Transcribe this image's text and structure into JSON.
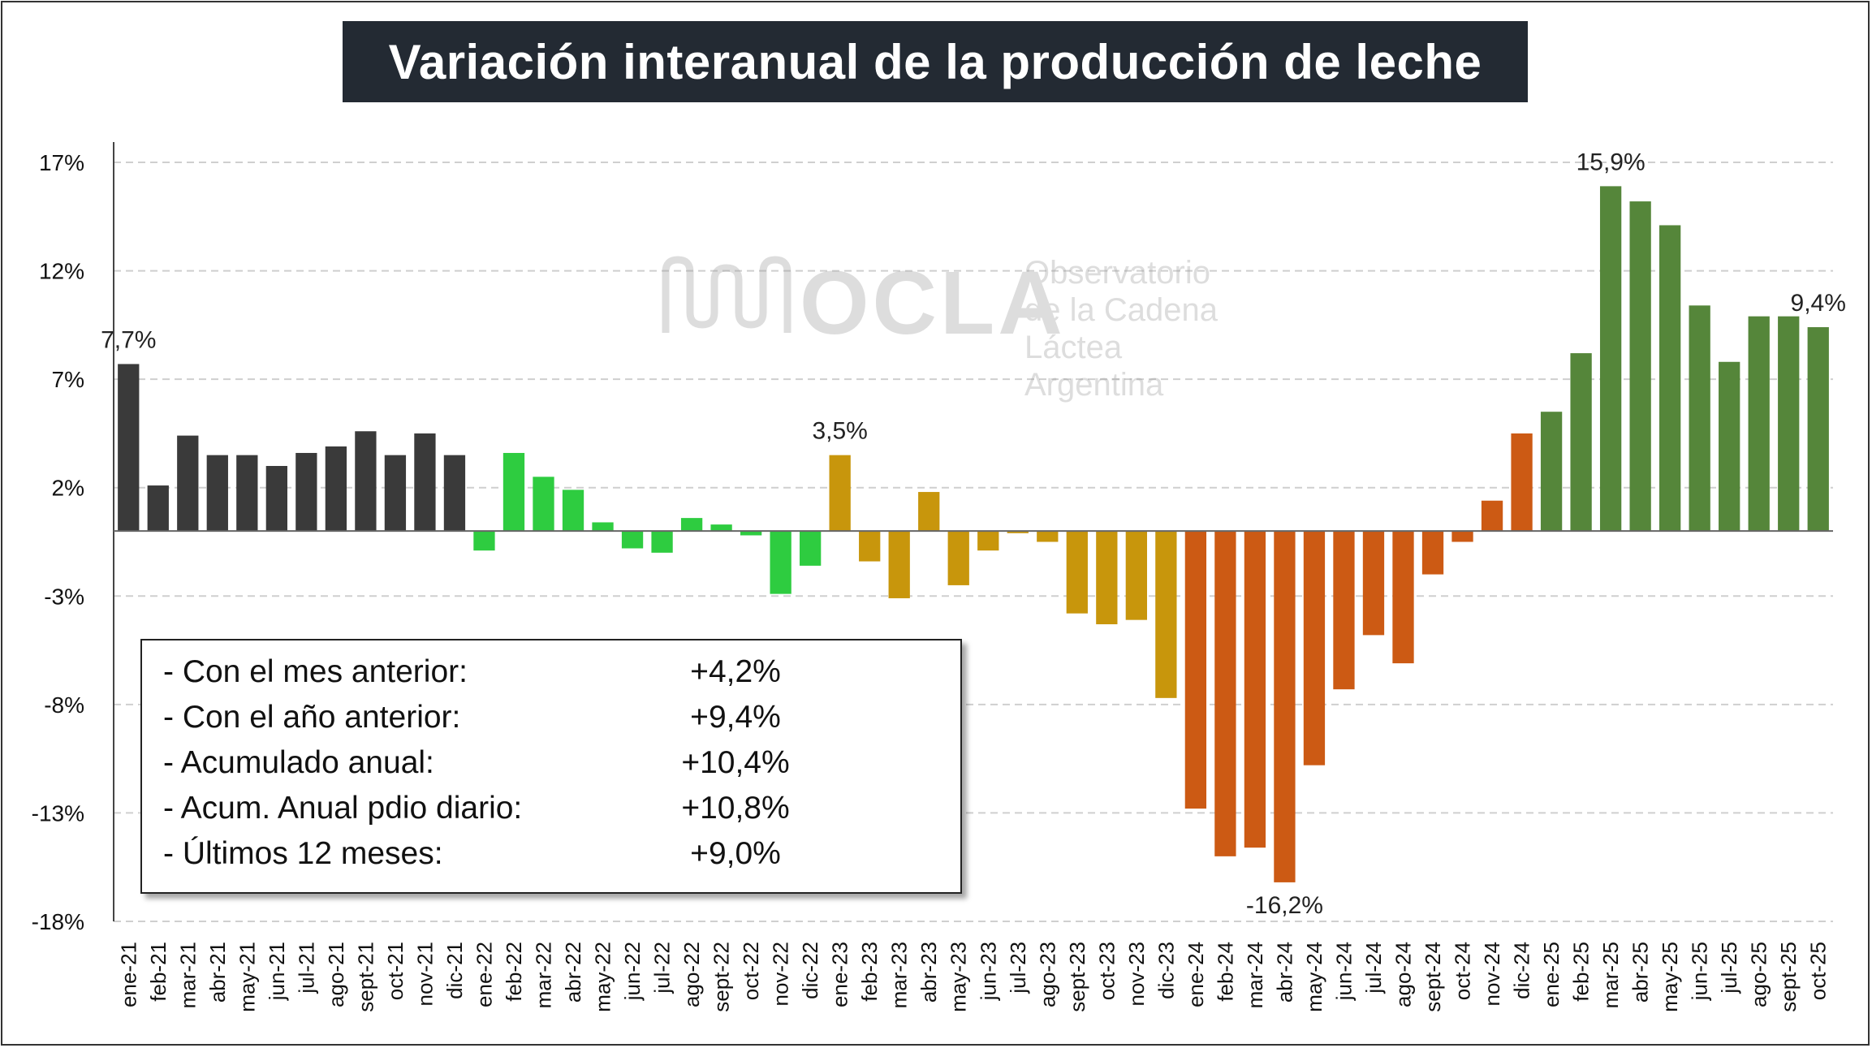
{
  "title": "Variación interanual de la producción de leche",
  "watermark": {
    "brand": "OCLA",
    "lines": [
      "Observatorio",
      "de la Cadena Láctea",
      "Argentina"
    ]
  },
  "stats": [
    {
      "label": "- Con el mes anterior:",
      "value": "+4,2%"
    },
    {
      "label": "- Con el año anterior:",
      "value": "+9,4%"
    },
    {
      "label": "- Acumulado anual:",
      "value": "+10,4%"
    },
    {
      "label": "- Acum. Anual pdio diario:",
      "value": "+10,8%"
    },
    {
      "label": "- Últimos 12 meses:",
      "value": "+9,0%"
    }
  ],
  "chart_data": {
    "type": "bar",
    "ylim": [
      -18,
      17
    ],
    "yticks": [
      17,
      12,
      7,
      2,
      -3,
      -8,
      -13,
      -18
    ],
    "ytick_labels": [
      "17%",
      "12%",
      "7%",
      "2%",
      "-3%",
      "-8%",
      "-13%",
      "-18%"
    ],
    "grid": true,
    "categories": [
      "ene-21",
      "feb-21",
      "mar-21",
      "abr-21",
      "may-21",
      "jun-21",
      "jul-21",
      "ago-21",
      "sept-21",
      "oct-21",
      "nov-21",
      "dic-21",
      "ene-22",
      "feb-22",
      "mar-22",
      "abr-22",
      "may-22",
      "jun-22",
      "jul-22",
      "ago-22",
      "sept-22",
      "oct-22",
      "nov-22",
      "dic-22",
      "ene-23",
      "feb-23",
      "mar-23",
      "abr-23",
      "may-23",
      "jun-23",
      "jul-23",
      "ago-23",
      "sept-23",
      "oct-23",
      "nov-23",
      "dic-23",
      "ene-24",
      "feb-24",
      "mar-24",
      "abr-24",
      "may-24",
      "jun-24",
      "jul-24",
      "ago-24",
      "sept-24",
      "oct-24",
      "nov-24",
      "dic-24",
      "ene-25",
      "feb-25",
      "mar-25",
      "abr-25",
      "may-25",
      "jun-25",
      "jul-25",
      "ago-25",
      "sept-25",
      "oct-25"
    ],
    "values": [
      7.7,
      2.1,
      4.4,
      3.5,
      3.5,
      3.0,
      3.6,
      3.9,
      4.6,
      3.5,
      4.5,
      3.5,
      -0.9,
      3.6,
      2.5,
      1.9,
      0.4,
      -0.8,
      -1.0,
      0.6,
      0.3,
      -0.2,
      -2.9,
      -1.6,
      3.5,
      -1.4,
      -3.1,
      1.8,
      -2.5,
      -0.9,
      -0.1,
      -0.5,
      -3.8,
      -4.3,
      -4.1,
      -7.7,
      -12.8,
      -15.0,
      -14.6,
      -16.2,
      -10.8,
      -7.3,
      -4.8,
      -6.1,
      -2.0,
      -0.5,
      1.4,
      4.5,
      5.5,
      8.2,
      15.9,
      15.2,
      14.1,
      10.4,
      7.8,
      9.9,
      9.9,
      9.4
    ],
    "colors": [
      "#3a3a3a",
      "#3a3a3a",
      "#3a3a3a",
      "#3a3a3a",
      "#3a3a3a",
      "#3a3a3a",
      "#3a3a3a",
      "#3a3a3a",
      "#3a3a3a",
      "#3a3a3a",
      "#3a3a3a",
      "#3a3a3a",
      "#2ecc40",
      "#2ecc40",
      "#2ecc40",
      "#2ecc40",
      "#2ecc40",
      "#2ecc40",
      "#2ecc40",
      "#2ecc40",
      "#2ecc40",
      "#2ecc40",
      "#2ecc40",
      "#2ecc40",
      "#c8960c",
      "#c8960c",
      "#c8960c",
      "#c8960c",
      "#c8960c",
      "#c8960c",
      "#c8960c",
      "#c8960c",
      "#c8960c",
      "#c8960c",
      "#c8960c",
      "#c8960c",
      "#cc5a14",
      "#cc5a14",
      "#cc5a14",
      "#cc5a14",
      "#cc5a14",
      "#cc5a14",
      "#cc5a14",
      "#cc5a14",
      "#cc5a14",
      "#cc5a14",
      "#cc5a14",
      "#cc5a14",
      "#55863a",
      "#55863a",
      "#55863a",
      "#55863a",
      "#55863a",
      "#55863a",
      "#55863a",
      "#55863a",
      "#55863a",
      "#55863a"
    ],
    "annotations": [
      {
        "index": 0,
        "text": "7,7%"
      },
      {
        "index": 24,
        "text": "3,5%"
      },
      {
        "index": 39,
        "text": "-16,2%"
      },
      {
        "index": 50,
        "text": "15,9%"
      },
      {
        "index": 57,
        "text": "9,4%"
      }
    ]
  }
}
